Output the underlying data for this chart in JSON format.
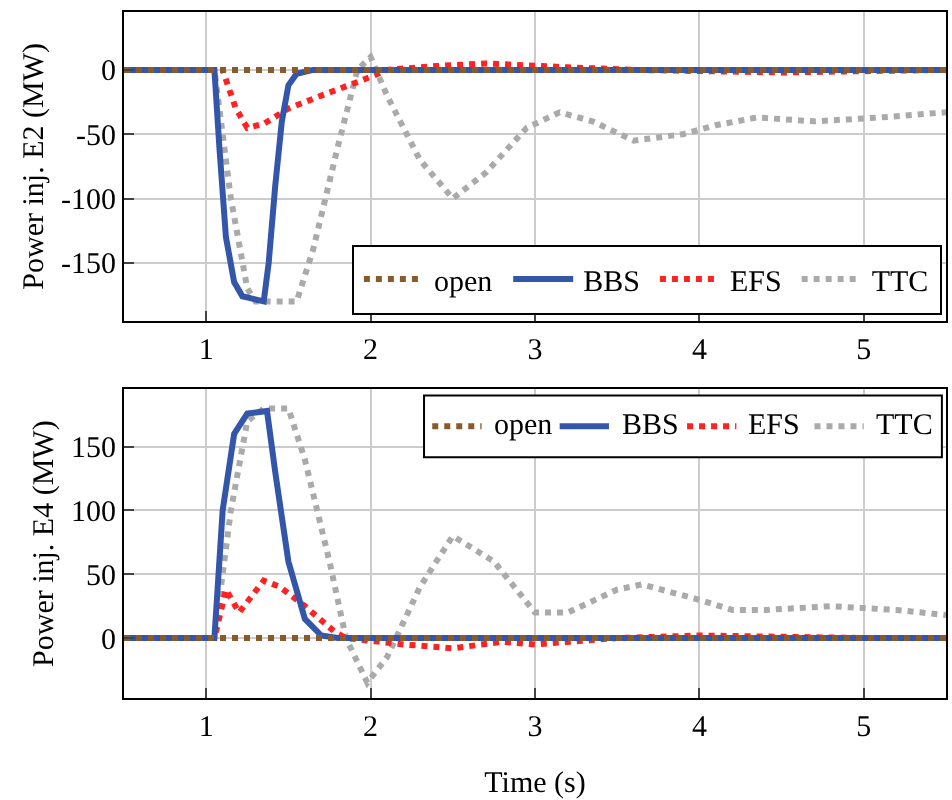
{
  "chart_data": [
    {
      "type": "line",
      "ylabel": "Power inj. E2 (MW)",
      "xlim": [
        0.5,
        5.5
      ],
      "xticks": [
        1,
        2,
        3,
        4,
        5
      ],
      "ylim": [
        -195,
        45
      ],
      "yticks": [
        -150,
        -100,
        -50,
        0
      ],
      "grid": true,
      "legend": "bottom right",
      "marker": "none",
      "series": [
        {
          "name": "open",
          "color": "#8b5a2b",
          "line_style": "dotted",
          "x": [
            0.5,
            5.5
          ],
          "values": [
            0,
            0
          ]
        },
        {
          "name": "BBS",
          "color": "#3355aa",
          "line_style": "solid",
          "x": [
            0.5,
            1.05,
            1.08,
            1.12,
            1.17,
            1.22,
            1.35,
            1.38,
            1.42,
            1.46,
            1.5,
            1.55,
            1.65,
            5.5
          ],
          "values": [
            0,
            0,
            -60,
            -130,
            -165,
            -176,
            -180,
            -150,
            -90,
            -40,
            -12,
            -3,
            0,
            0
          ]
        },
        {
          "name": "EFS",
          "color": "#ff2222",
          "line_style": "dotted",
          "x": [
            0.5,
            1.1,
            1.18,
            1.25,
            1.35,
            1.5,
            1.7,
            1.95,
            2.1,
            2.4,
            2.7,
            3.2,
            3.6,
            4.5,
            5.5
          ],
          "values": [
            0,
            0,
            -30,
            -45,
            -42,
            -30,
            -20,
            -8,
            0,
            3,
            5,
            2,
            0,
            -2,
            0
          ]
        },
        {
          "name": "TTC",
          "color": "#aaaaaa",
          "line_style": "dotted",
          "x": [
            0.5,
            1.05,
            1.15,
            1.25,
            1.3,
            1.55,
            1.65,
            1.8,
            1.92,
            2.0,
            2.1,
            2.3,
            2.5,
            2.7,
            2.95,
            3.15,
            3.35,
            3.6,
            3.9,
            4.1,
            4.35,
            4.7,
            5.1,
            5.5
          ],
          "values": [
            0,
            0,
            -100,
            -170,
            -180,
            -180,
            -140,
            -60,
            0,
            10,
            -20,
            -70,
            -100,
            -80,
            -45,
            -33,
            -40,
            -55,
            -50,
            -43,
            -37,
            -40,
            -37,
            -33
          ]
        }
      ]
    },
    {
      "type": "line",
      "xlabel": "Time (s)",
      "ylabel": "Power inj. E4 (MW)",
      "xlim": [
        0.5,
        5.5
      ],
      "xticks": [
        1,
        2,
        3,
        4,
        5
      ],
      "ylim": [
        -47,
        195
      ],
      "yticks": [
        0,
        50,
        100,
        150
      ],
      "grid": true,
      "legend": "top right",
      "marker": "none",
      "series": [
        {
          "name": "open",
          "color": "#8b5a2b",
          "line_style": "dotted",
          "x": [
            0.5,
            5.5
          ],
          "values": [
            0,
            0
          ]
        },
        {
          "name": "BBS",
          "color": "#3355aa",
          "line_style": "solid",
          "x": [
            0.5,
            1.05,
            1.1,
            1.17,
            1.25,
            1.37,
            1.42,
            1.5,
            1.6,
            1.7,
            1.8,
            5.5
          ],
          "values": [
            0,
            0,
            100,
            160,
            176,
            178,
            130,
            60,
            15,
            2,
            0,
            0
          ]
        },
        {
          "name": "EFS",
          "color": "#ff2222",
          "line_style": "dotted",
          "x": [
            0.5,
            1.05,
            1.12,
            1.2,
            1.35,
            1.45,
            1.6,
            1.78,
            1.85,
            2.2,
            2.5,
            2.8,
            3.0,
            3.3,
            3.5,
            4.0,
            5.0,
            5.5
          ],
          "values": [
            0,
            0,
            38,
            20,
            45,
            40,
            25,
            5,
            0,
            -5,
            -8,
            -3,
            -5,
            -2,
            0,
            2,
            0,
            0
          ]
        },
        {
          "name": "TTC",
          "color": "#aaaaaa",
          "line_style": "dotted",
          "x": [
            0.5,
            1.05,
            1.15,
            1.25,
            1.35,
            1.5,
            1.6,
            1.75,
            1.85,
            1.98,
            2.1,
            2.3,
            2.5,
            2.75,
            3.0,
            3.2,
            3.5,
            3.65,
            4.0,
            4.2,
            4.4,
            4.8,
            5.2,
            5.5
          ],
          "values": [
            0,
            0,
            100,
            170,
            180,
            180,
            140,
            60,
            0,
            -35,
            -15,
            40,
            80,
            60,
            20,
            20,
            38,
            42,
            30,
            22,
            22,
            25,
            22,
            18
          ]
        }
      ]
    }
  ]
}
